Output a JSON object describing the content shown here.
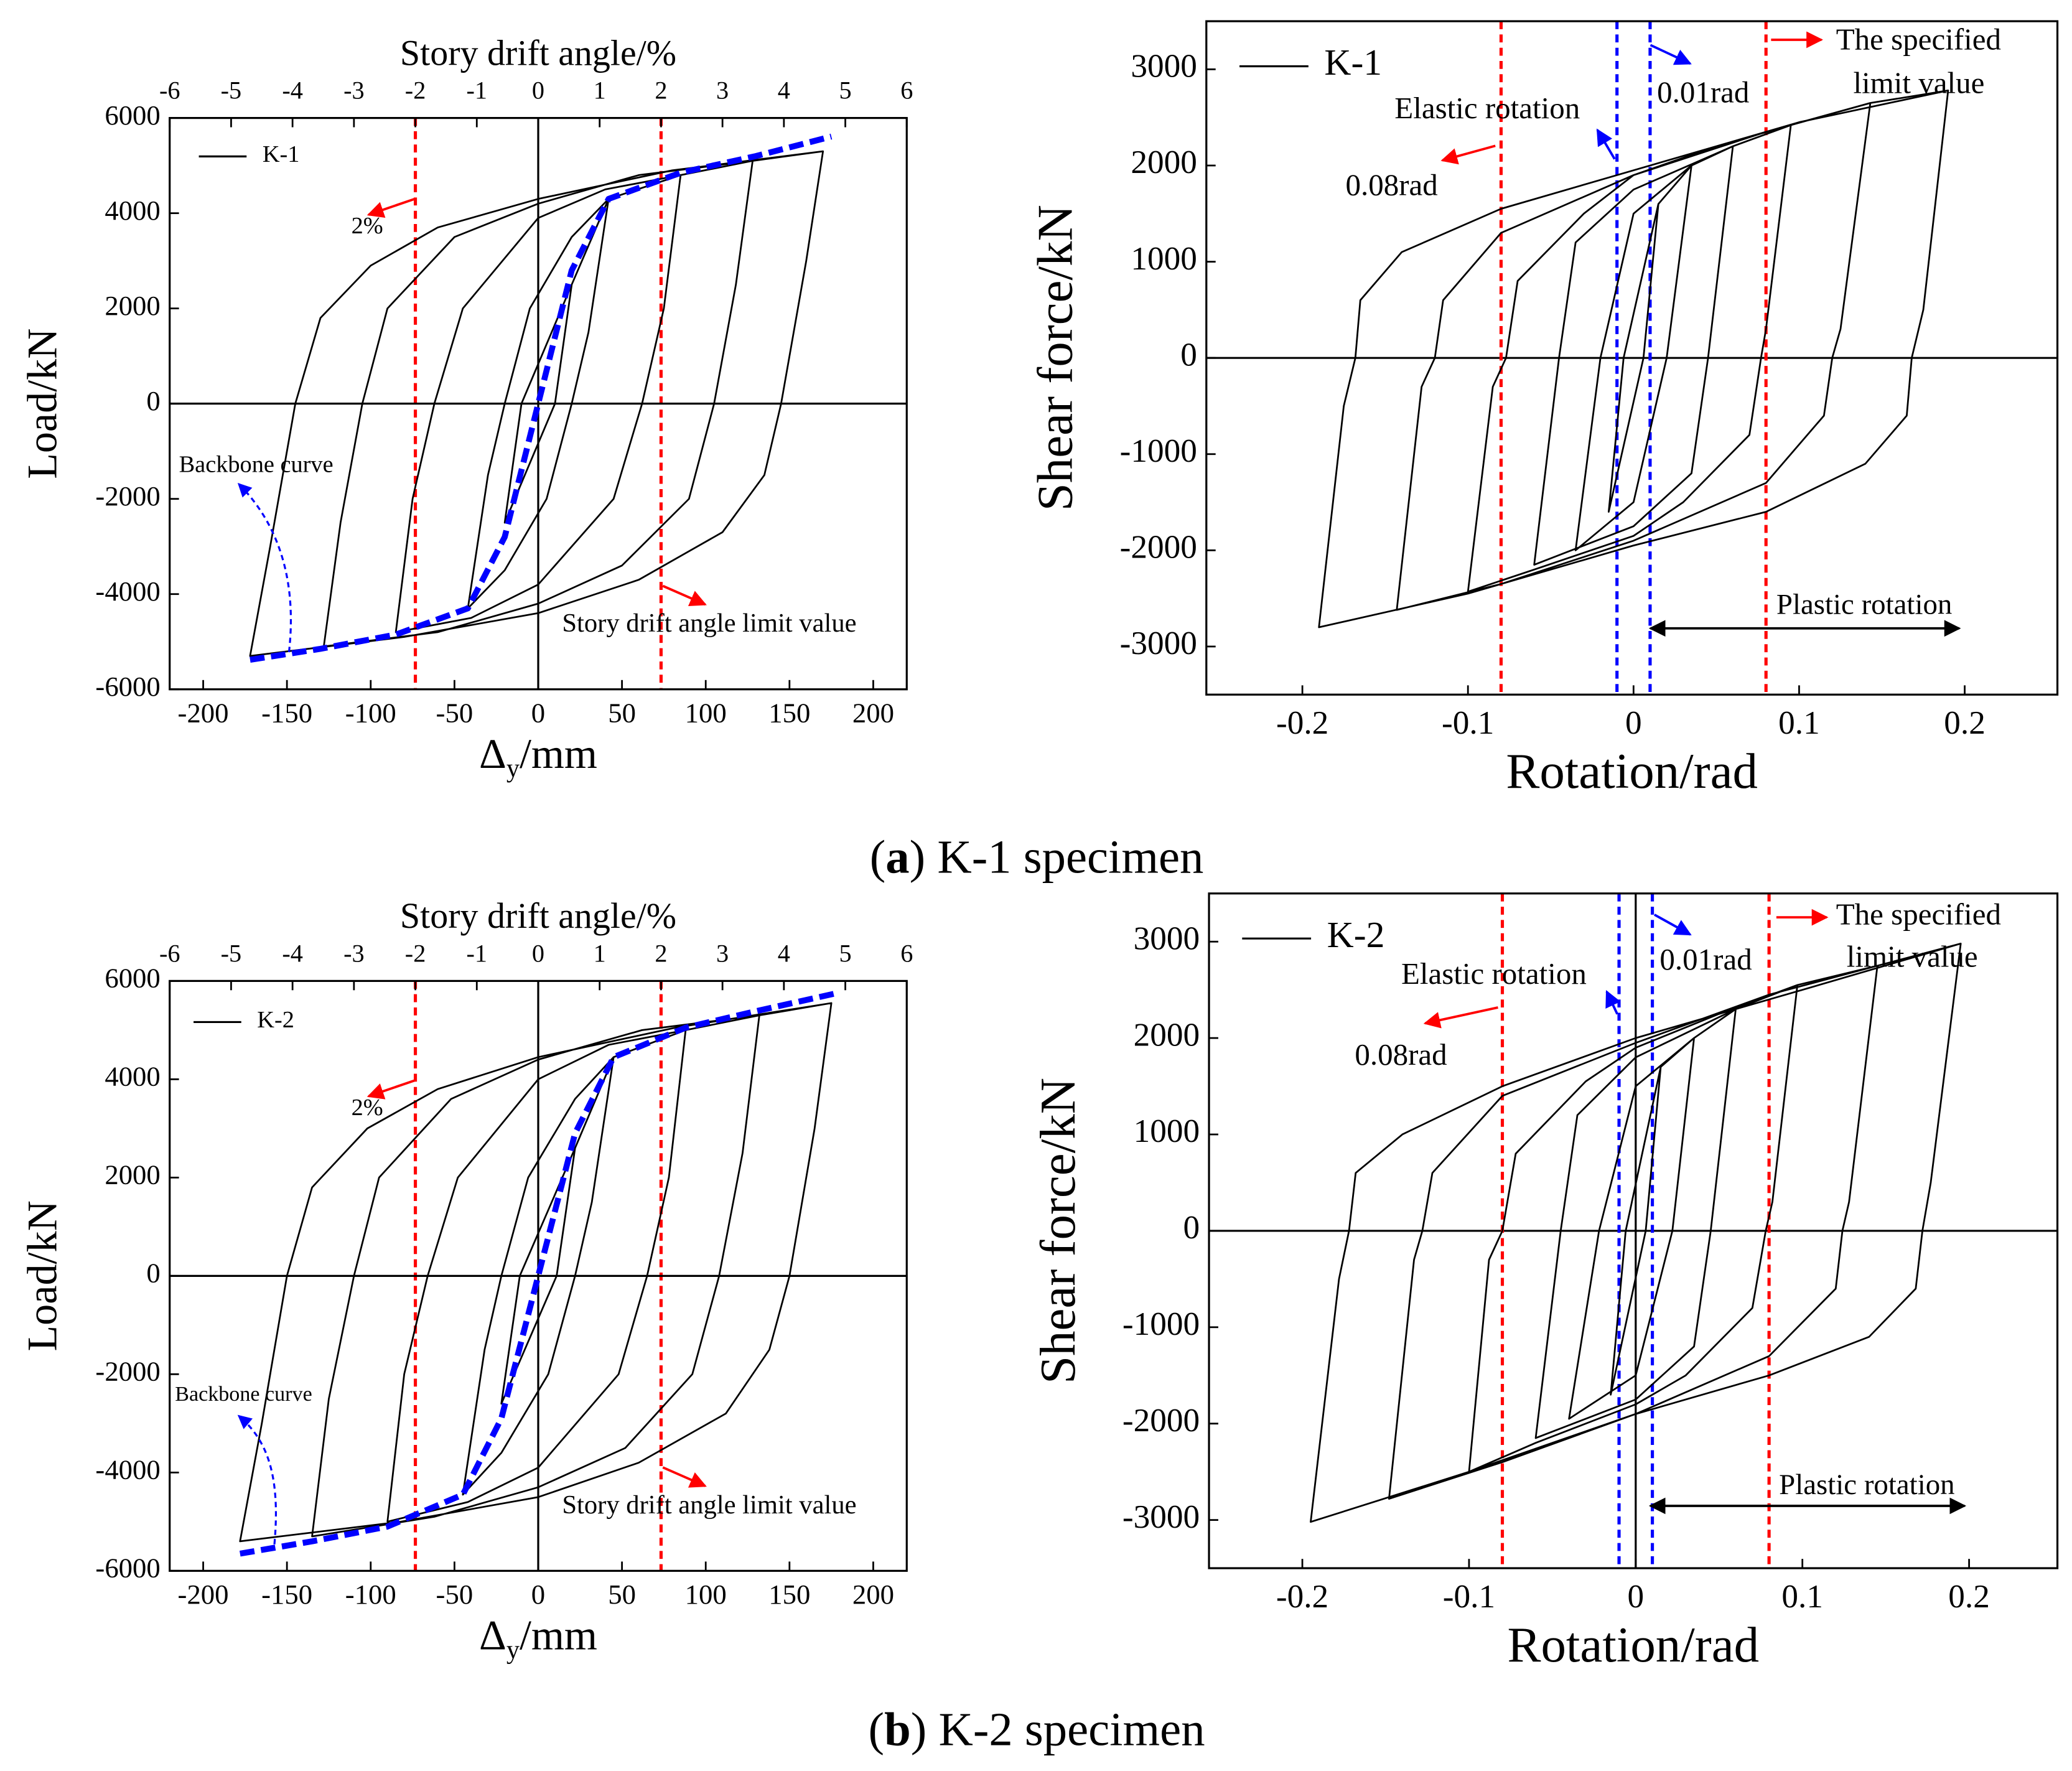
{
  "chart_data": [
    {
      "type": "line",
      "x2label": "Story drift angle/%",
      "ylabel": "Load/kN",
      "xlabel": [
        "Δ",
        "y",
        "/mm"
      ],
      "xlim": [
        -220,
        220
      ],
      "ylim": [
        -6000,
        6000
      ],
      "x2lim": [
        -6,
        6
      ],
      "xticks": [
        -200,
        -150,
        -100,
        -50,
        0,
        50,
        100,
        150,
        200
      ],
      "yticks": [
        -6000,
        -4000,
        -2000,
        0,
        2000,
        4000,
        6000
      ],
      "x2ticks": [
        -6,
        -5,
        -4,
        -3,
        -2,
        -1,
        0,
        1,
        2,
        3,
        4,
        5,
        6
      ],
      "legend": "upper left",
      "series": [
        {
          "name": "K-1",
          "color": "#000000",
          "dash": false,
          "x": [
            20,
            10,
            -20,
            -10,
            20,
            42,
            30,
            20,
            5,
            -20,
            -42,
            -30,
            -20,
            -5,
            20,
            42,
            85,
            75,
            62,
            45,
            0,
            -40,
            -85,
            -75,
            -62,
            -45,
            0,
            40,
            85,
            128,
            118,
            105,
            90,
            50,
            0,
            -60,
            -128,
            -118,
            -105,
            -90,
            -50,
            0,
            60,
            128,
            170,
            160,
            145,
            135,
            110,
            60,
            0,
            -80,
            -172,
            -160,
            -145,
            -130,
            -100,
            -60,
            0,
            80,
            170
          ],
          "values": [
            2500,
            0,
            -2500,
            0,
            2500,
            4300,
            1500,
            0,
            -2000,
            -3500,
            -4300,
            -1500,
            0,
            2000,
            3500,
            4300,
            4800,
            2000,
            0,
            -2000,
            -3800,
            -4500,
            -4800,
            -2000,
            0,
            2000,
            3900,
            4500,
            4800,
            5100,
            2500,
            0,
            -2000,
            -3400,
            -4200,
            -4800,
            -5100,
            -2500,
            0,
            2000,
            3500,
            4200,
            4800,
            5100,
            5300,
            3000,
            0,
            -1500,
            -2700,
            -3700,
            -4400,
            -4900,
            -5300,
            -3000,
            0,
            1800,
            2900,
            3700,
            4300,
            4900,
            5300
          ]
        },
        {
          "name": "Backbone curve",
          "color": "#0000ff",
          "dash": true,
          "legend": false,
          "x": [
            -172,
            -130,
            -85,
            -42,
            -20,
            0,
            20,
            42,
            85,
            130,
            175
          ],
          "values": [
            -5380,
            -5150,
            -4850,
            -4300,
            -2800,
            0,
            2800,
            4300,
            4850,
            5200,
            5610
          ]
        }
      ],
      "ref_lines": [
        {
          "axis": "x2",
          "value": -2,
          "color": "#ff0000",
          "dash": true
        },
        {
          "axis": "x2",
          "value": 2,
          "color": "#ff0000",
          "dash": true
        },
        {
          "axis": "x",
          "value": 0,
          "color": "#000000",
          "dash": false
        },
        {
          "axis": "y",
          "value": 0,
          "color": "#000000",
          "dash": false
        }
      ],
      "annotations": [
        {
          "text": "2%",
          "color": "#ff0000"
        },
        {
          "text": "Story drift angle limit value",
          "color": "#ff0000"
        }
      ]
    },
    {
      "type": "line",
      "ylabel": "Shear force/kN",
      "xlabel": "Rotation/rad",
      "xlim": [
        -0.258,
        0.256
      ],
      "ylim": [
        -3500,
        3500
      ],
      "xticks": [
        -0.2,
        -0.1,
        0,
        0.1,
        0.2
      ],
      "yticks": [
        -3000,
        -2000,
        -1000,
        0,
        1000,
        2000,
        3000
      ],
      "legend": "upper left",
      "series": [
        {
          "name": "K-1",
          "color": "#000000",
          "dash": false,
          "x": [
            0.015,
            0.006,
            -0.015,
            -0.006,
            0.015,
            0.035,
            0.02,
            0,
            -0.035,
            -0.02,
            0,
            0.035,
            0.06,
            0.045,
            0.035,
            0,
            -0.06,
            -0.045,
            -0.035,
            0,
            0.06,
            0.095,
            0.08,
            0.077,
            0.07,
            0.03,
            0,
            -0.06,
            -0.1,
            -0.085,
            -0.077,
            -0.07,
            -0.03,
            0,
            0.05,
            0.095,
            0.143,
            0.125,
            0.12,
            0.115,
            0.08,
            0,
            -0.08,
            -0.143,
            -0.128,
            -0.12,
            -0.115,
            -0.08,
            0,
            0.08,
            0.143,
            0.19,
            0.175,
            0.168,
            0.165,
            0.14,
            0.08,
            0,
            -0.1,
            -0.19,
            -0.175,
            -0.168,
            -0.165,
            -0.14,
            -0.08,
            0,
            0.1,
            0.19
          ],
          "values": [
            1600,
            0,
            -1600,
            0,
            1600,
            2000,
            0,
            -1500,
            -2000,
            0,
            1500,
            2000,
            2200,
            0,
            -1200,
            -1750,
            -2150,
            0,
            1200,
            1750,
            2200,
            2420,
            300,
            0,
            -800,
            -1500,
            -1850,
            -2200,
            -2430,
            -300,
            0,
            800,
            1500,
            1900,
            2200,
            2420,
            2650,
            300,
            0,
            -600,
            -1300,
            -1900,
            -2350,
            -2620,
            -300,
            0,
            600,
            1300,
            1900,
            2350,
            2650,
            2780,
            500,
            0,
            -600,
            -1100,
            -1600,
            -1950,
            -2450,
            -2800,
            -500,
            0,
            600,
            1100,
            1550,
            1950,
            2450,
            2780
          ]
        }
      ],
      "ref_lines": [
        {
          "axis": "y",
          "value": 0,
          "color": "#000000",
          "dash": false
        },
        {
          "axis": "x",
          "value": -0.08,
          "color": "#ff0000",
          "dash": true
        },
        {
          "axis": "x",
          "value": 0.08,
          "color": "#ff0000",
          "dash": true
        },
        {
          "axis": "x",
          "value": -0.01,
          "color": "#0000ff",
          "dash": true
        },
        {
          "axis": "x",
          "value": 0.01,
          "color": "#0000ff",
          "dash": true
        }
      ],
      "annotations": [
        {
          "text": "Elastic rotation",
          "color": "#0000ff"
        },
        {
          "text": "0.01rad",
          "color": "#0000ff"
        },
        {
          "text": "The specified",
          "color": "#ff0000"
        },
        {
          "text": "limit value",
          "color": "#ff0000"
        },
        {
          "text": "0.08rad",
          "color": "#ff0000"
        },
        {
          "text": "Plastic rotation",
          "color": "#000000"
        }
      ]
    },
    {
      "type": "line",
      "x2label": "Story drift angle/%",
      "ylabel": "Load/kN",
      "xlabel": [
        "Δ",
        "y",
        "/mm"
      ],
      "xlim": [
        -220,
        220
      ],
      "ylim": [
        -6000,
        6000
      ],
      "x2lim": [
        -6,
        6
      ],
      "xticks": [
        -200,
        -150,
        -100,
        -50,
        0,
        50,
        100,
        150,
        200
      ],
      "yticks": [
        -6000,
        -4000,
        -2000,
        0,
        2000,
        4000,
        6000
      ],
      "x2ticks": [
        -6,
        -5,
        -4,
        -3,
        -2,
        -1,
        0,
        1,
        2,
        3,
        4,
        5,
        6
      ],
      "legend": "upper left",
      "series": [
        {
          "name": "K-2",
          "color": "#000000",
          "dash": false,
          "x": [
            22,
            11,
            -22,
            -11,
            22,
            45,
            32,
            22,
            6,
            -22,
            -45,
            -32,
            -22,
            -6,
            22,
            45,
            88,
            78,
            65,
            48,
            0,
            -42,
            -90,
            -80,
            -66,
            -48,
            0,
            42,
            88,
            132,
            122,
            108,
            92,
            52,
            0,
            -62,
            -135,
            -125,
            -110,
            -95,
            -52,
            0,
            62,
            132,
            175,
            165,
            150,
            138,
            112,
            60,
            0,
            -82,
            -178,
            -165,
            -150,
            -135,
            -102,
            -60,
            0,
            82,
            175
          ],
          "values": [
            2600,
            0,
            -2600,
            0,
            2600,
            4450,
            1500,
            0,
            -2000,
            -3600,
            -4450,
            -1500,
            0,
            2000,
            3600,
            4450,
            5000,
            2000,
            0,
            -2000,
            -3900,
            -4600,
            -5000,
            -2000,
            0,
            2000,
            4000,
            4700,
            5000,
            5300,
            2500,
            0,
            -2000,
            -3500,
            -4300,
            -4900,
            -5300,
            -2500,
            0,
            2000,
            3600,
            4400,
            5000,
            5300,
            5550,
            3000,
            0,
            -1500,
            -2800,
            -3800,
            -4500,
            -5000,
            -5400,
            -3000,
            0,
            1800,
            3000,
            3800,
            4450,
            5050,
            5550
          ]
        },
        {
          "name": "Backbone curve",
          "color": "#0000ff",
          "dash": true,
          "legend": false,
          "x": [
            -178,
            -135,
            -90,
            -45,
            -22,
            0,
            22,
            45,
            88,
            132,
            178
          ],
          "values": [
            -5650,
            -5400,
            -5100,
            -4450,
            -2900,
            0,
            2900,
            4450,
            5050,
            5400,
            5750
          ]
        }
      ],
      "ref_lines": [
        {
          "axis": "x2",
          "value": -2,
          "color": "#ff0000",
          "dash": true
        },
        {
          "axis": "x2",
          "value": 2,
          "color": "#ff0000",
          "dash": true
        },
        {
          "axis": "x",
          "value": 0,
          "color": "#000000",
          "dash": false
        },
        {
          "axis": "y",
          "value": 0,
          "color": "#000000",
          "dash": false
        }
      ],
      "annotations": [
        {
          "text": "2%",
          "color": "#ff0000"
        },
        {
          "text": "Story drift angle limit value",
          "color": "#ff0000"
        }
      ]
    },
    {
      "type": "line",
      "ylabel": "Shear force/kN",
      "xlabel": "Rotation/rad",
      "xlim": [
        -0.256,
        0.253
      ],
      "ylim": [
        -3500,
        3500
      ],
      "xticks": [
        -0.2,
        -0.1,
        0,
        0.1,
        0.2
      ],
      "yticks": [
        -3000,
        -2000,
        -1000,
        0,
        1000,
        2000,
        3000
      ],
      "legend": "upper left",
      "series": [
        {
          "name": "K-2",
          "color": "#000000",
          "dash": false,
          "x": [
            0.015,
            0.006,
            -0.015,
            -0.006,
            0.015,
            0.035,
            0.022,
            0,
            -0.04,
            -0.022,
            0,
            0.035,
            0.06,
            0.045,
            0.035,
            0,
            -0.06,
            -0.045,
            -0.035,
            0,
            0.06,
            0.097,
            0.082,
            0.078,
            0.07,
            0.03,
            0,
            -0.06,
            -0.1,
            -0.088,
            -0.08,
            -0.072,
            -0.03,
            0,
            0.05,
            0.097,
            0.145,
            0.128,
            0.124,
            0.12,
            0.08,
            0,
            -0.08,
            -0.148,
            -0.133,
            -0.128,
            -0.122,
            -0.08,
            0,
            0.08,
            0.145,
            0.195,
            0.177,
            0.172,
            0.168,
            0.14,
            0.08,
            0,
            -0.1,
            -0.195,
            -0.178,
            -0.172,
            -0.168,
            -0.14,
            -0.08,
            0,
            0.1,
            0.195
          ],
          "values": [
            1700,
            0,
            -1700,
            0,
            1700,
            2000,
            0,
            -1500,
            -1950,
            0,
            1500,
            2000,
            2300,
            0,
            -1200,
            -1750,
            -2150,
            0,
            1200,
            1800,
            2300,
            2550,
            300,
            0,
            -800,
            -1500,
            -1800,
            -2200,
            -2500,
            -300,
            0,
            800,
            1550,
            1900,
            2250,
            2550,
            2750,
            300,
            0,
            -600,
            -1300,
            -1900,
            -2400,
            -2780,
            -300,
            0,
            600,
            1400,
            1950,
            2450,
            2750,
            2980,
            500,
            0,
            -600,
            -1100,
            -1500,
            -1900,
            -2500,
            -3020,
            -500,
            0,
            600,
            1000,
            1500,
            2000,
            2500,
            2980
          ]
        }
      ],
      "ref_lines": [
        {
          "axis": "y",
          "value": 0,
          "color": "#000000",
          "dash": false
        },
        {
          "axis": "x",
          "value": 0,
          "color": "#000000",
          "dash": false
        },
        {
          "axis": "x",
          "value": -0.08,
          "color": "#ff0000",
          "dash": true
        },
        {
          "axis": "x",
          "value": 0.08,
          "color": "#ff0000",
          "dash": true
        },
        {
          "axis": "x",
          "value": -0.01,
          "color": "#0000ff",
          "dash": true
        },
        {
          "axis": "x",
          "value": 0.01,
          "color": "#0000ff",
          "dash": true
        }
      ],
      "annotations": [
        {
          "text": "Elastic rotation",
          "color": "#0000ff"
        },
        {
          "text": "0.01rad",
          "color": "#0000ff"
        },
        {
          "text": "The specified",
          "color": "#ff0000"
        },
        {
          "text": "limit value",
          "color": "#ff0000"
        },
        {
          "text": "0.08rad",
          "color": "#ff0000"
        },
        {
          "text": "Plastic rotation",
          "color": "#000000"
        }
      ]
    }
  ],
  "captions": [
    [
      "(",
      "a",
      ")",
      "K-1 specimen"
    ],
    [
      "(",
      "b",
      ")",
      "K-2 specimen"
    ]
  ]
}
